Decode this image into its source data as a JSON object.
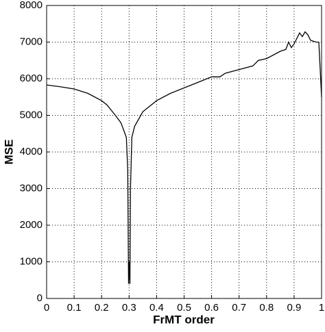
{
  "chart_data": {
    "type": "line",
    "x_label": "FrMT order",
    "y_label": "MSE",
    "xlim": [
      0,
      1
    ],
    "ylim": [
      0,
      8000
    ],
    "xticks": [
      0,
      0.1,
      0.2,
      0.3,
      0.4,
      0.5,
      0.6,
      0.7,
      0.8,
      0.9,
      1
    ],
    "yticks": [
      0,
      1000,
      2000,
      3000,
      4000,
      5000,
      6000,
      7000,
      8000
    ],
    "grid": true,
    "series": [
      {
        "color": "#000000",
        "x": [
          0,
          0.05,
          0.1,
          0.15,
          0.2,
          0.22,
          0.25,
          0.27,
          0.28,
          0.29,
          0.295,
          0.298,
          0.3,
          0.303,
          0.305,
          0.31,
          0.32,
          0.35,
          0.4,
          0.45,
          0.5,
          0.55,
          0.6,
          0.63,
          0.65,
          0.7,
          0.75,
          0.77,
          0.8,
          0.85,
          0.87,
          0.88,
          0.89,
          0.9,
          0.92,
          0.93,
          0.94,
          0.95,
          0.96,
          0.98,
          0.99,
          1
        ],
        "values": [
          5830,
          5780,
          5720,
          5600,
          5400,
          5280,
          5000,
          4800,
          4600,
          4400,
          3500,
          400,
          1000,
          400,
          3000,
          4400,
          4700,
          5100,
          5400,
          5600,
          5750,
          5900,
          6050,
          6050,
          6150,
          6250,
          6350,
          6500,
          6550,
          6750,
          6800,
          7000,
          6850,
          6950,
          7250,
          7150,
          7280,
          7200,
          7050,
          7000,
          7000,
          5500
        ]
      }
    ]
  }
}
